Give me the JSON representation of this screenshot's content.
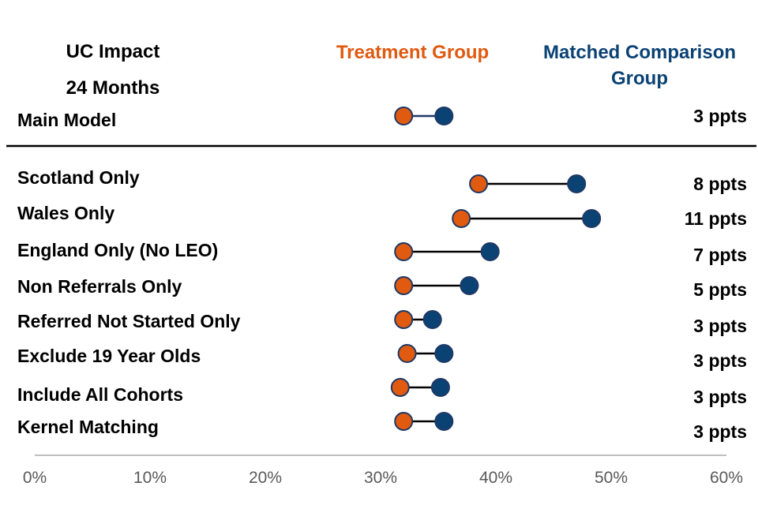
{
  "headers": {
    "impact_line1": "UC Impact",
    "impact_line2": "24 Months",
    "treatment": "Treatment Group",
    "comparison": "Matched Comparison Group"
  },
  "colors": {
    "treatment": "#E05A10",
    "comparison": "#0B4274",
    "connector_main": "#1F3864",
    "connector": "#000000",
    "axis": "#BFBFBF",
    "tick_text": "#595959"
  },
  "chart_data": {
    "type": "dumbbell",
    "x_unit": "%",
    "xlim": [
      0,
      60
    ],
    "x_ticks": [
      "0%",
      "10%",
      "20%",
      "30%",
      "40%",
      "50%",
      "60%"
    ],
    "x_tick_values": [
      0,
      10,
      20,
      30,
      40,
      50,
      60
    ],
    "series": [
      {
        "name": "Treatment Group"
      },
      {
        "name": "Matched Comparison Group"
      }
    ],
    "rows": [
      {
        "label": "Main Model",
        "treatment": 32,
        "comparison": 35.5,
        "diff": "3 ppts",
        "group": "main"
      },
      {
        "label": "Scotland Only",
        "treatment": 38.5,
        "comparison": 47,
        "diff": "8 ppts"
      },
      {
        "label": "Wales Only",
        "treatment": 37,
        "comparison": 48.3,
        "diff": "11 ppts"
      },
      {
        "label": "England Only (No LEO)",
        "treatment": 32,
        "comparison": 39.5,
        "diff": "7 ppts"
      },
      {
        "label": "Non Referrals Only",
        "treatment": 32,
        "comparison": 37.7,
        "diff": "5 ppts"
      },
      {
        "label": "Referred Not Started Only",
        "treatment": 32,
        "comparison": 34.5,
        "diff": "3 ppts"
      },
      {
        "label": "Exclude 19 Year Olds",
        "treatment": 32.3,
        "comparison": 35.5,
        "diff": "3 ppts"
      },
      {
        "label": "Include All Cohorts",
        "treatment": 31.7,
        "comparison": 35.2,
        "diff": "3 ppts"
      },
      {
        "label": "Kernel Matching",
        "treatment": 32,
        "comparison": 35.5,
        "diff": "3 ppts"
      }
    ]
  }
}
